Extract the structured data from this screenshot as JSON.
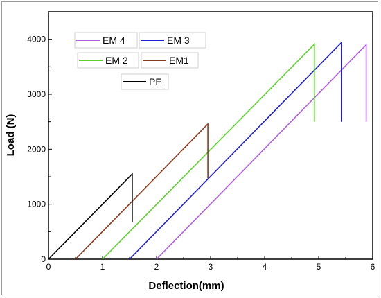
{
  "chart_data": {
    "type": "line",
    "xlabel": "Deflection(mm)",
    "ylabel": "Load (N)",
    "xlim": [
      0,
      6
    ],
    "ylim": [
      0,
      4500
    ],
    "x_ticks": [
      "0",
      "1",
      "2",
      "3",
      "4",
      "5",
      "6"
    ],
    "y_ticks": [
      "0",
      "1000",
      "2000",
      "3000",
      "4000"
    ],
    "x_tick_values": [
      0,
      1,
      2,
      3,
      4,
      5,
      6
    ],
    "y_tick_values": [
      0,
      1000,
      2000,
      3000,
      4000
    ],
    "series": [
      {
        "name": "EM 4",
        "color": "#b05ce6",
        "x": [
          2.0,
          5.88,
          5.88
        ],
        "y": [
          0,
          3900,
          2500
        ]
      },
      {
        "name": "EM 3",
        "color": "#1f1fd6",
        "x": [
          1.5,
          5.42,
          5.42
        ],
        "y": [
          0,
          3940,
          2500
        ]
      },
      {
        "name": "EM 2",
        "color": "#5ad12a",
        "x": [
          1.0,
          4.92,
          4.92
        ],
        "y": [
          0,
          3910,
          2500
        ]
      },
      {
        "name": "EM1",
        "color": "#8b3a1e",
        "x": [
          0.5,
          2.95,
          2.95
        ],
        "y": [
          0,
          2460,
          1470
        ]
      },
      {
        "name": "PE",
        "color": "#000000",
        "x": [
          0.0,
          1.55,
          1.55
        ],
        "y": [
          0,
          1550,
          680
        ]
      }
    ],
    "grid": false,
    "legend": "top-left"
  }
}
